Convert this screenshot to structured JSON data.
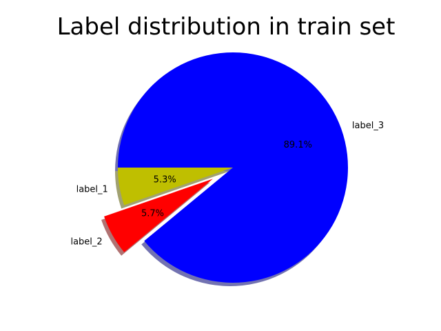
{
  "chart_data": {
    "type": "pie",
    "title": "Label distribution in train set",
    "slices": [
      {
        "label": "label_1",
        "value": 5.3,
        "pct_label": "5.3%",
        "color": "#bfbf00",
        "explode": 0.0
      },
      {
        "label": "label_2",
        "value": 5.7,
        "pct_label": "5.7%",
        "color": "#ff0000",
        "explode": 0.2
      },
      {
        "label": "label_3",
        "value": 89.1,
        "pct_label": "89.1%",
        "color": "#0000ff",
        "explode": 0.0
      }
    ],
    "start_angle_deg": 180,
    "direction": "counterclockwise",
    "shadow": true,
    "legend": "none"
  }
}
